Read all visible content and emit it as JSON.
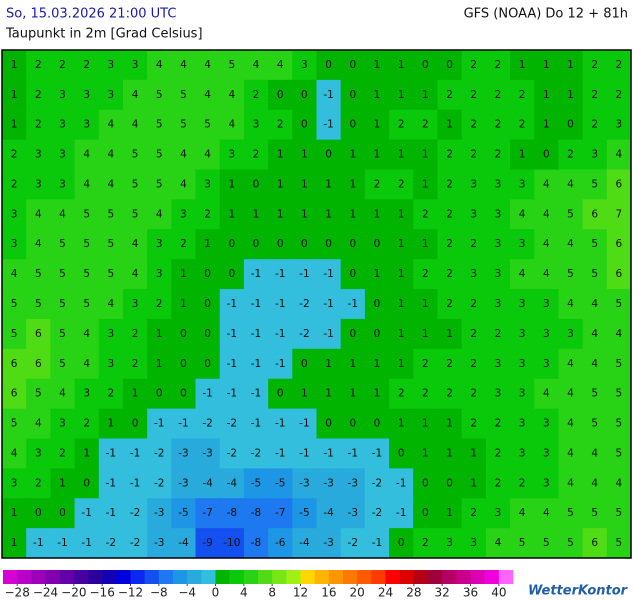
{
  "header": {
    "datetime": "So, 15.03.2026 21:00 UTC",
    "model": "GFS (NOAA) Do 12 + 81h",
    "parameter": "Taupunkt in 2m [Grad Celsius]"
  },
  "map": {
    "grid": [
      [
        1,
        2,
        2,
        2,
        3,
        3,
        4,
        4,
        4,
        5,
        4,
        4,
        3,
        0,
        0,
        1,
        1,
        0,
        0,
        2,
        2,
        1,
        1,
        1,
        2,
        2
      ],
      [
        1,
        2,
        3,
        3,
        3,
        4,
        5,
        5,
        4,
        4,
        2,
        0,
        0,
        -1,
        0,
        1,
        1,
        1,
        2,
        2,
        2,
        2,
        1,
        1,
        2,
        2
      ],
      [
        1,
        2,
        3,
        3,
        4,
        4,
        5,
        5,
        5,
        4,
        3,
        2,
        0,
        -1,
        0,
        1,
        2,
        2,
        1,
        2,
        2,
        2,
        1,
        0,
        2,
        3
      ],
      [
        2,
        3,
        3,
        4,
        4,
        5,
        5,
        4,
        4,
        3,
        2,
        1,
        1,
        0,
        1,
        1,
        1,
        1,
        2,
        2,
        2,
        1,
        0,
        2,
        3,
        4
      ],
      [
        2,
        3,
        3,
        4,
        4,
        5,
        5,
        4,
        3,
        1,
        0,
        1,
        1,
        1,
        1,
        2,
        2,
        1,
        2,
        3,
        3,
        3,
        4,
        4,
        5,
        6
      ],
      [
        3,
        4,
        4,
        5,
        5,
        5,
        4,
        3,
        2,
        1,
        1,
        1,
        1,
        1,
        1,
        1,
        1,
        2,
        2,
        3,
        3,
        4,
        4,
        5,
        6,
        7
      ],
      [
        3,
        4,
        5,
        5,
        5,
        4,
        3,
        2,
        1,
        0,
        0,
        0,
        0,
        0,
        0,
        0,
        1,
        1,
        2,
        2,
        3,
        3,
        4,
        4,
        5,
        6
      ],
      [
        4,
        5,
        5,
        5,
        5,
        4,
        3,
        1,
        0,
        0,
        -1,
        -1,
        -1,
        -1,
        0,
        1,
        1,
        2,
        2,
        3,
        3,
        4,
        4,
        5,
        5,
        6
      ],
      [
        5,
        5,
        5,
        5,
        4,
        3,
        2,
        1,
        0,
        -1,
        -1,
        -1,
        -2,
        -1,
        -1,
        0,
        1,
        1,
        2,
        2,
        3,
        3,
        3,
        4,
        4,
        5
      ],
      [
        5,
        6,
        5,
        4,
        3,
        2,
        1,
        0,
        0,
        -1,
        -1,
        -1,
        -2,
        -1,
        0,
        0,
        1,
        1,
        1,
        2,
        2,
        3,
        3,
        3,
        4,
        4
      ],
      [
        6,
        6,
        5,
        4,
        3,
        2,
        1,
        0,
        0,
        -1,
        -1,
        -1,
        0,
        1,
        1,
        1,
        1,
        2,
        2,
        2,
        3,
        3,
        3,
        4,
        4,
        5
      ],
      [
        6,
        5,
        4,
        3,
        2,
        1,
        0,
        0,
        -1,
        -1,
        -1,
        0,
        1,
        1,
        1,
        1,
        2,
        2,
        2,
        2,
        3,
        3,
        4,
        4,
        5,
        5
      ],
      [
        5,
        4,
        3,
        2,
        1,
        0,
        -1,
        -1,
        -2,
        -2,
        -1,
        -1,
        -1,
        0,
        0,
        0,
        1,
        1,
        1,
        2,
        2,
        3,
        3,
        4,
        5,
        5
      ],
      [
        4,
        3,
        2,
        1,
        -1,
        -1,
        -2,
        -3,
        -3,
        -2,
        -2,
        -1,
        -1,
        -1,
        -1,
        -1,
        0,
        1,
        1,
        1,
        2,
        3,
        3,
        4,
        4,
        5
      ],
      [
        3,
        2,
        1,
        0,
        -1,
        -1,
        -2,
        -3,
        -4,
        -4,
        -5,
        -5,
        -3,
        -3,
        -3,
        -2,
        -1,
        0,
        0,
        1,
        2,
        2,
        3,
        4,
        4,
        4
      ],
      [
        1,
        0,
        0,
        -1,
        -1,
        -2,
        -3,
        -5,
        -7,
        -8,
        -8,
        -7,
        -5,
        -4,
        -3,
        -2,
        -1,
        0,
        1,
        2,
        3,
        4,
        4,
        5,
        5,
        5
      ],
      [
        1,
        -1,
        -1,
        -1,
        -2,
        -2,
        -3,
        -4,
        -9,
        -10,
        -8,
        -6,
        -4,
        -3,
        -2,
        -1,
        0,
        2,
        3,
        3,
        4,
        5,
        5,
        5,
        6,
        5
      ]
    ]
  },
  "legend": {
    "lim": [
      -30,
      42
    ],
    "colors": [
      "#d400d4",
      "#b800c8",
      "#9c00bc",
      "#8000b0",
      "#6400a8",
      "#4800a0",
      "#2c009c",
      "#1400b4",
      "#0000dc",
      "#0a28f0",
      "#1450f0",
      "#1e78f0",
      "#1e96e6",
      "#28aadc",
      "#32bedc",
      "#00b400",
      "#0ac80a",
      "#28d214",
      "#50dc14",
      "#78e614",
      "#a0f014",
      "#ffd700",
      "#ffb400",
      "#ff9600",
      "#ff7800",
      "#ff5a00",
      "#ff3c00",
      "#ff0000",
      "#dc0000",
      "#b40014",
      "#a0003c",
      "#b40064",
      "#c8008c",
      "#dc00b4",
      "#f000dc",
      "#ff64ff"
    ],
    "ticks": [
      {
        "value": -28,
        "label": "−28"
      },
      {
        "value": -24,
        "label": "−24"
      },
      {
        "value": -20,
        "label": "−20"
      },
      {
        "value": -16,
        "label": "−16"
      },
      {
        "value": -12,
        "label": "−12"
      },
      {
        "value": -8,
        "label": "−8"
      },
      {
        "value": -4,
        "label": "−4"
      },
      0,
      4,
      8,
      12,
      16,
      20,
      24,
      28,
      32,
      36,
      40
    ]
  },
  "brand": "WetterKontor"
}
